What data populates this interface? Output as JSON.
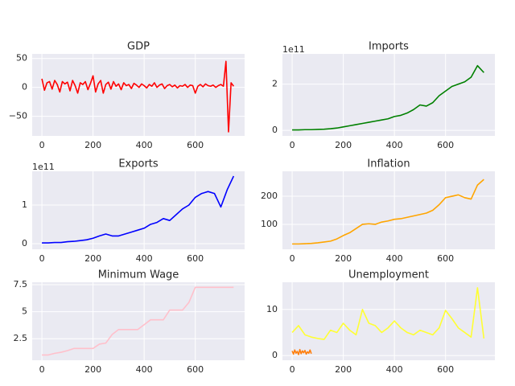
{
  "chart_data": [
    {
      "type": "line",
      "title": "GDP",
      "x": [
        0,
        10,
        20,
        30,
        40,
        50,
        60,
        70,
        80,
        90,
        100,
        110,
        120,
        130,
        140,
        150,
        160,
        170,
        180,
        190,
        200,
        210,
        220,
        230,
        240,
        250,
        260,
        270,
        280,
        290,
        300,
        310,
        320,
        330,
        340,
        350,
        360,
        370,
        380,
        390,
        400,
        410,
        420,
        430,
        440,
        450,
        460,
        470,
        480,
        490,
        500,
        510,
        520,
        530,
        540,
        550,
        560,
        570,
        580,
        590,
        600,
        610,
        620,
        630,
        640,
        650,
        660,
        670,
        680,
        690,
        700,
        710,
        720,
        730,
        740,
        750
      ],
      "series": [
        {
          "color": "#ff0000",
          "values": [
            15,
            -5,
            8,
            10,
            -3,
            12,
            5,
            -8,
            10,
            6,
            9,
            -6,
            12,
            3,
            -10,
            8,
            5,
            10,
            -4,
            7,
            20,
            -8,
            6,
            12,
            -10,
            5,
            9,
            -3,
            10,
            2,
            6,
            -4,
            8,
            3,
            5,
            -2,
            7,
            4,
            0,
            6,
            3,
            -1,
            5,
            2,
            8,
            0,
            4,
            6,
            -2,
            3,
            5,
            1,
            4,
            -1,
            3,
            2,
            5,
            0,
            4,
            3,
            -10,
            2,
            5,
            1,
            6,
            3,
            2,
            4,
            0,
            3,
            5,
            2,
            45,
            -77,
            8,
            2
          ]
        }
      ],
      "xlim": [
        -38,
        793
      ],
      "ylim": [
        -84,
        58
      ],
      "xticks": [
        0,
        200,
        400,
        600
      ],
      "yticks": [
        {
          "value": -50,
          "label": "−50"
        },
        0,
        50
      ],
      "grid": true
    },
    {
      "type": "line",
      "title": "Imports",
      "y_offset_label": "1e11",
      "x": [
        0,
        25,
        50,
        75,
        100,
        125,
        150,
        175,
        200,
        225,
        250,
        275,
        300,
        325,
        350,
        375,
        400,
        425,
        450,
        475,
        500,
        525,
        550,
        575,
        600,
        625,
        650,
        675,
        700,
        725,
        750
      ],
      "series": [
        {
          "color": "#008000",
          "values": [
            0.02,
            0.02,
            0.03,
            0.03,
            0.04,
            0.05,
            0.07,
            0.1,
            0.15,
            0.2,
            0.25,
            0.3,
            0.35,
            0.4,
            0.45,
            0.5,
            0.6,
            0.65,
            0.75,
            0.9,
            1.1,
            1.05,
            1.2,
            1.5,
            1.7,
            1.9,
            2.0,
            2.1,
            2.3,
            2.8,
            2.5
          ]
        }
      ],
      "xlim": [
        -38,
        793
      ],
      "ylim": [
        -0.24,
        3.31
      ],
      "xticks": [
        0,
        200,
        400,
        600
      ],
      "yticks": [
        0,
        2
      ],
      "grid": true
    },
    {
      "type": "line",
      "title": "Exports",
      "y_offset_label": "1e11",
      "x": [
        0,
        25,
        50,
        75,
        100,
        125,
        150,
        175,
        200,
        225,
        250,
        275,
        300,
        325,
        350,
        375,
        400,
        425,
        450,
        475,
        500,
        525,
        550,
        575,
        600,
        625,
        650,
        675,
        700,
        725,
        750
      ],
      "series": [
        {
          "color": "#0000ff",
          "values": [
            0.02,
            0.02,
            0.03,
            0.03,
            0.05,
            0.06,
            0.08,
            0.1,
            0.14,
            0.2,
            0.25,
            0.2,
            0.2,
            0.25,
            0.3,
            0.35,
            0.4,
            0.5,
            0.55,
            0.65,
            0.6,
            0.75,
            0.9,
            1.0,
            1.2,
            1.3,
            1.35,
            1.3,
            0.95,
            1.4,
            1.75
          ]
        }
      ],
      "xlim": [
        -38,
        793
      ],
      "ylim": [
        -0.146,
        1.875
      ],
      "xticks": [
        0,
        200,
        400,
        600
      ],
      "yticks": [
        0,
        1
      ],
      "grid": true
    },
    {
      "type": "line",
      "title": "Inflation",
      "x": [
        0,
        25,
        50,
        75,
        100,
        125,
        150,
        175,
        200,
        225,
        250,
        275,
        300,
        325,
        350,
        375,
        400,
        425,
        450,
        475,
        500,
        525,
        550,
        575,
        600,
        625,
        650,
        675,
        700,
        725,
        750
      ],
      "series": [
        {
          "color": "#ffa500",
          "values": [
            30,
            30,
            31,
            32,
            34,
            37,
            40,
            48,
            60,
            70,
            85,
            100,
            102,
            100,
            108,
            112,
            118,
            120,
            125,
            130,
            135,
            140,
            150,
            170,
            195,
            200,
            205,
            195,
            190,
            240,
            260
          ]
        }
      ],
      "xlim": [
        -38,
        793
      ],
      "ylim": [
        11,
        289
      ],
      "xticks": [
        0,
        200,
        400,
        600
      ],
      "yticks": [
        100,
        200
      ],
      "grid": true
    },
    {
      "type": "line",
      "title": "Minimum Wage",
      "x": [
        0,
        25,
        50,
        75,
        100,
        125,
        150,
        175,
        200,
        225,
        250,
        275,
        300,
        325,
        350,
        375,
        400,
        425,
        450,
        475,
        500,
        525,
        550,
        575,
        600,
        625,
        650,
        675,
        700,
        725,
        750
      ],
      "series": [
        {
          "color": "#ffc0cb",
          "values": [
            1.0,
            1.0,
            1.15,
            1.25,
            1.4,
            1.6,
            1.6,
            1.6,
            1.6,
            2.0,
            2.1,
            2.9,
            3.35,
            3.35,
            3.35,
            3.35,
            3.8,
            4.25,
            4.25,
            4.25,
            5.15,
            5.15,
            5.15,
            5.85,
            7.25,
            7.25,
            7.25,
            7.25,
            7.25,
            7.25,
            7.25
          ]
        }
      ],
      "xlim": [
        -38,
        793
      ],
      "ylim": [
        0.51,
        7.72
      ],
      "xticks": [
        0,
        200,
        400,
        600
      ],
      "yticks": [
        2.5,
        5.0,
        7.5
      ],
      "grid": true
    },
    {
      "type": "line",
      "title": "Unemployment",
      "x": [
        0,
        25,
        50,
        75,
        100,
        125,
        150,
        175,
        200,
        225,
        250,
        275,
        300,
        325,
        350,
        375,
        400,
        425,
        450,
        475,
        500,
        525,
        550,
        575,
        600,
        625,
        650,
        675,
        700,
        725,
        750
      ],
      "series": [
        {
          "color": "#ffff33",
          "values": [
            5,
            6.5,
            4.5,
            4,
            3.7,
            3.5,
            5.5,
            5,
            7,
            5.5,
            4.5,
            10,
            7,
            6.5,
            5,
            6,
            7.5,
            6,
            5,
            4.5,
            5.5,
            5,
            4.5,
            6,
            9.8,
            8,
            6,
            5,
            4,
            14.7,
            3.7
          ]
        },
        {
          "color": "#ff7f0e",
          "x": [
            0,
            5,
            10,
            15,
            20,
            25,
            30,
            35,
            40,
            45,
            50,
            55,
            60,
            65,
            70,
            75
          ],
          "values": [
            1,
            0.3,
            1.2,
            0.5,
            0.9,
            0.2,
            1.3,
            0.4,
            1,
            0.6,
            1.1,
            0.3,
            0.8,
            0.5,
            1.2,
            0.4
          ]
        }
      ],
      "xlim": [
        -38,
        793
      ],
      "ylim": [
        -1.03,
        15.9
      ],
      "xticks": [
        0,
        200,
        400,
        600
      ],
      "yticks": [
        0,
        10
      ],
      "grid": true
    }
  ]
}
